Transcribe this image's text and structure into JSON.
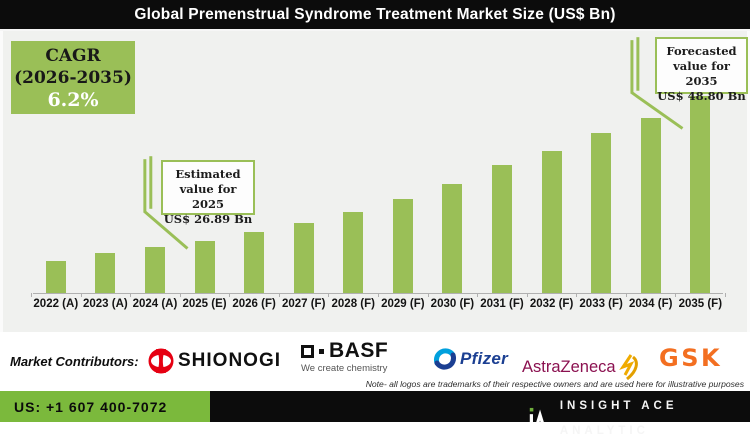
{
  "header": {
    "title": "Global Premenstrual Syndrome Treatment Market Size (US$ Bn)"
  },
  "cagr": {
    "line1": "CAGR",
    "line2": "(2026-2035)",
    "value": "6.2%"
  },
  "annotations": {
    "estimated": {
      "line1": "Estimated",
      "line2": "value for 2025",
      "line3": "US$ 26.89 Bn"
    },
    "forecasted": {
      "line1": "Forecasted",
      "line2": "value for 2035",
      "line3": "US$ 48.80 Bn"
    }
  },
  "chart_data": {
    "type": "bar",
    "title": "Global Premenstrual Syndrome Treatment Market Size (US$ Bn)",
    "ylabel": "US$ Bn",
    "categories": [
      "2022 (A)",
      "2023 (A)",
      "2024 (A)",
      "2025 (E)",
      "2026 (F)",
      "2027 (F)",
      "2028 (F)",
      "2029 (F)",
      "2030 (F)",
      "2031 (F)",
      "2032 (F)",
      "2033 (F)",
      "2034 (F)",
      "2035 (F)"
    ],
    "values": [
      23.9,
      25.1,
      26.0,
      26.89,
      28.2,
      29.6,
      31.2,
      33.2,
      35.5,
      38.3,
      40.5,
      43.2,
      45.5,
      48.8
    ],
    "labeled_points": [
      {
        "category": "2025 (E)",
        "value": 26.89,
        "label": "Estimated value for 2025 US$ 26.89 Bn"
      },
      {
        "category": "2035 (F)",
        "value": 48.8,
        "label": "Forecasted value for 2035 US$ 48.80 Bn"
      }
    ],
    "values_note": "Only 2025 and 2035 values are labeled in the figure; other values estimated from bar heights",
    "cagr": "6.2% (2026-2035)",
    "ylim": [
      19,
      50
    ],
    "bar_color": "#9abf57",
    "grid": false,
    "legend": false,
    "y_axis_shown": false
  },
  "contributors": {
    "label": "Market Contributors:",
    "shionogi": "SHIONOGI",
    "basf": "BASF",
    "basf_tagline": "We create chemistry",
    "pfizer": "Pfizer",
    "astrazeneca": "AstraZeneca",
    "gsk": "GSK",
    "note": "Note- all logos are trademarks of their respective owners and are used here for illustrative purposes"
  },
  "footer": {
    "phone": "US: +1 607 400-7072",
    "brand": "INSIGHT ACE ANALYTIC"
  },
  "icons": {
    "shionogi_icon": "red-circle-with-white-lens",
    "basf_icon": "outlined-square-and-dot",
    "pfizer_icon": "two-tone-blue-swirl-circle",
    "astrazeneca_icon": "gold-swirl",
    "insightace_icon": "white-A-monogram-with-green-dot"
  },
  "colors": {
    "bar_green": "#9abf57",
    "chart_bg": "#f0f1ef",
    "header_bg": "#0c0c0c",
    "footer_green": "#7bb93c",
    "footer_black": "#0c0c0c",
    "annotation_border": "#9abf57",
    "shionogi_red": "#e60012",
    "pfizer_blue": "#1b3f92",
    "astrazeneca_mulberry": "#8b1150",
    "astrazeneca_gold": "#f0ab00",
    "gsk_orange": "#f36f21"
  }
}
